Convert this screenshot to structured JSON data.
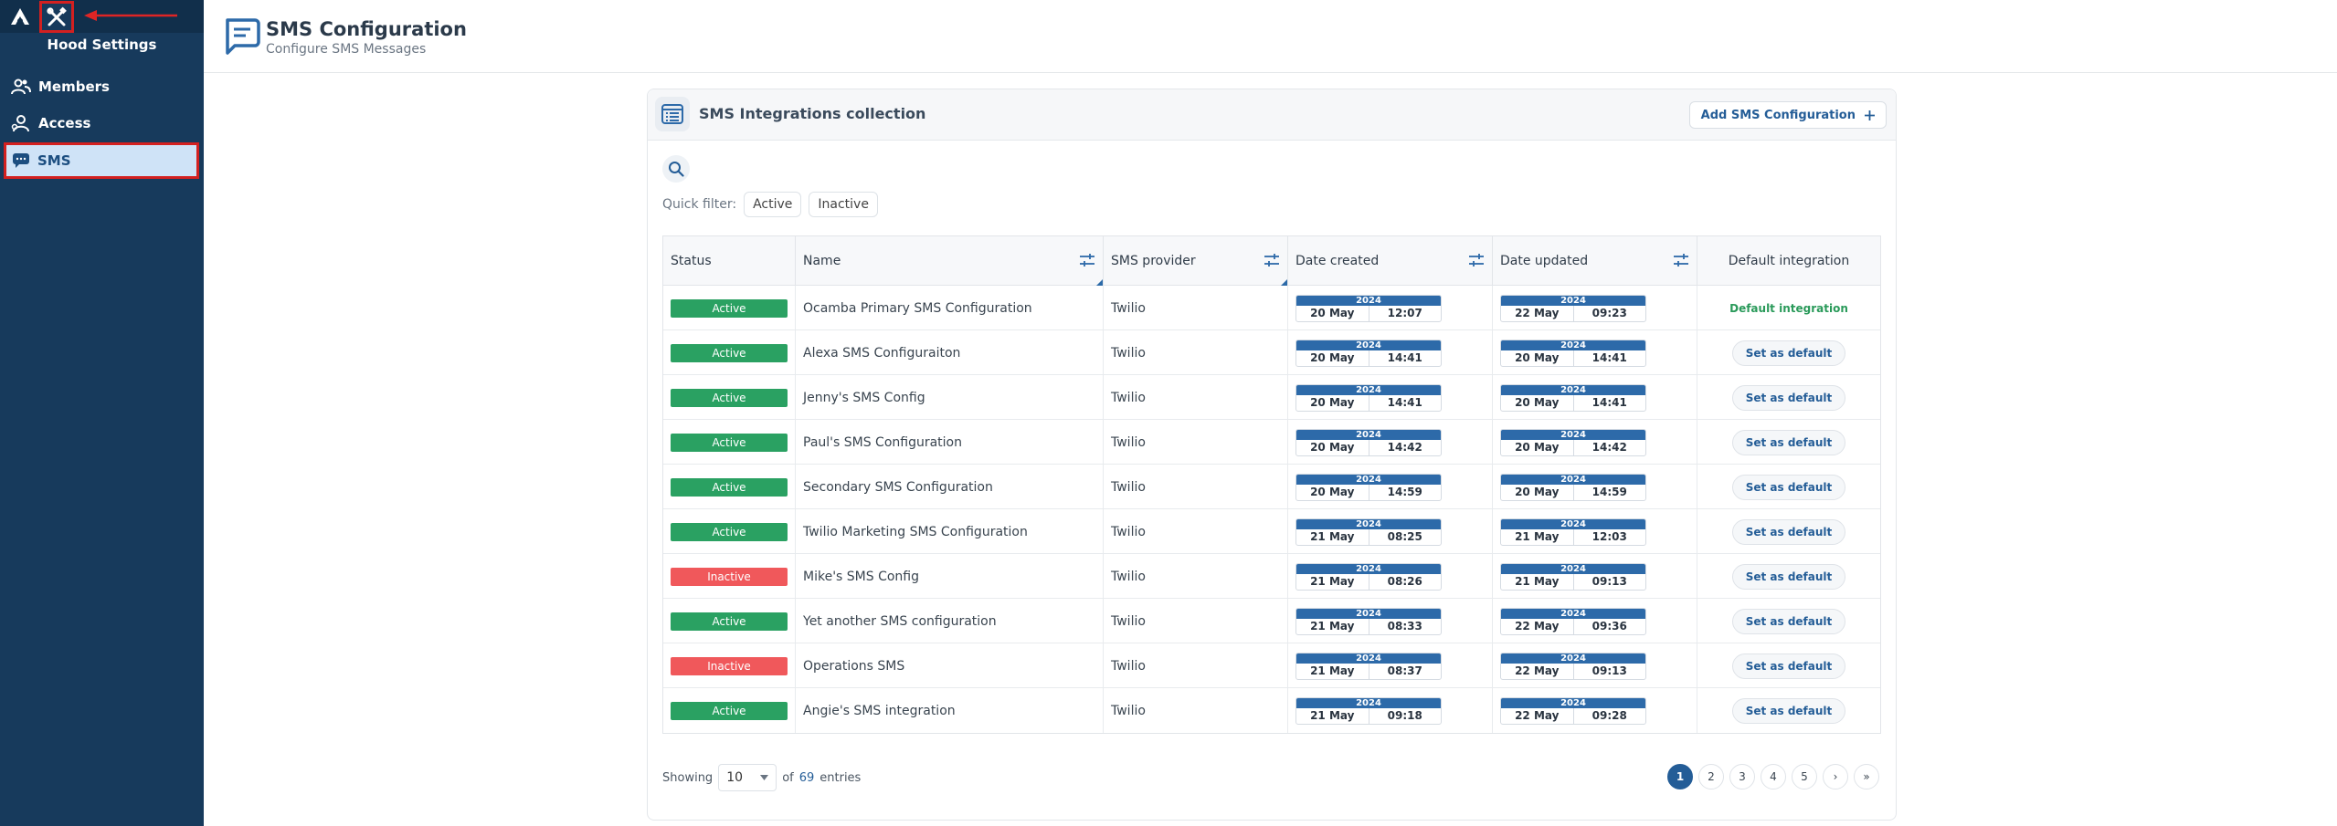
{
  "sidebar": {
    "title": "Hood Settings",
    "items": [
      {
        "label": "Members",
        "icon": "members-icon"
      },
      {
        "label": "Access",
        "icon": "access-icon"
      },
      {
        "label": "SMS",
        "icon": "sms-icon",
        "active": true
      }
    ]
  },
  "header": {
    "title": "SMS Configuration",
    "subtitle": "Configure SMS Messages"
  },
  "panel": {
    "title": "SMS Integrations collection",
    "add_button": "Add SMS Configuration",
    "quick_filter_label": "Quick filter:",
    "quick_filters": [
      "Active",
      "Inactive"
    ]
  },
  "table": {
    "columns": [
      "Status",
      "Name",
      "SMS provider",
      "Date created",
      "Date updated",
      "Default integration"
    ],
    "rows": [
      {
        "status": "Active",
        "name": "Ocamba Primary SMS Configuration",
        "provider": "Twilio",
        "created": {
          "year": "2024",
          "day": "20 May",
          "time": "12:07"
        },
        "updated": {
          "year": "2024",
          "day": "22 May",
          "time": "09:23"
        },
        "default": "Default integration"
      },
      {
        "status": "Active",
        "name": "Alexa SMS Configuraiton",
        "provider": "Twilio",
        "created": {
          "year": "2024",
          "day": "20 May",
          "time": "14:41"
        },
        "updated": {
          "year": "2024",
          "day": "20 May",
          "time": "14:41"
        },
        "default": "Set as default"
      },
      {
        "status": "Active",
        "name": "Jenny's SMS Config",
        "provider": "Twilio",
        "created": {
          "year": "2024",
          "day": "20 May",
          "time": "14:41"
        },
        "updated": {
          "year": "2024",
          "day": "20 May",
          "time": "14:41"
        },
        "default": "Set as default"
      },
      {
        "status": "Active",
        "name": "Paul's SMS Configuration",
        "provider": "Twilio",
        "created": {
          "year": "2024",
          "day": "20 May",
          "time": "14:42"
        },
        "updated": {
          "year": "2024",
          "day": "20 May",
          "time": "14:42"
        },
        "default": "Set as default"
      },
      {
        "status": "Active",
        "name": "Secondary SMS Configuration",
        "provider": "Twilio",
        "created": {
          "year": "2024",
          "day": "20 May",
          "time": "14:59"
        },
        "updated": {
          "year": "2024",
          "day": "20 May",
          "time": "14:59"
        },
        "default": "Set as default"
      },
      {
        "status": "Active",
        "name": "Twilio Marketing SMS Configuration",
        "provider": "Twilio",
        "created": {
          "year": "2024",
          "day": "21 May",
          "time": "08:25"
        },
        "updated": {
          "year": "2024",
          "day": "21 May",
          "time": "12:03"
        },
        "default": "Set as default"
      },
      {
        "status": "Inactive",
        "name": "Mike's SMS Config",
        "provider": "Twilio",
        "created": {
          "year": "2024",
          "day": "21 May",
          "time": "08:26"
        },
        "updated": {
          "year": "2024",
          "day": "21 May",
          "time": "09:13"
        },
        "default": "Set as default"
      },
      {
        "status": "Active",
        "name": "Yet another SMS configuration",
        "provider": "Twilio",
        "created": {
          "year": "2024",
          "day": "21 May",
          "time": "08:33"
        },
        "updated": {
          "year": "2024",
          "day": "22 May",
          "time": "09:36"
        },
        "default": "Set as default"
      },
      {
        "status": "Inactive",
        "name": "Operations SMS",
        "provider": "Twilio",
        "created": {
          "year": "2024",
          "day": "21 May",
          "time": "08:37"
        },
        "updated": {
          "year": "2024",
          "day": "22 May",
          "time": "09:13"
        },
        "default": "Set as default"
      },
      {
        "status": "Active",
        "name": "Angie's SMS integration",
        "provider": "Twilio",
        "created": {
          "year": "2024",
          "day": "21 May",
          "time": "09:18"
        },
        "updated": {
          "year": "2024",
          "day": "22 May",
          "time": "09:28"
        },
        "default": "Set as default"
      }
    ]
  },
  "footer": {
    "showing_label": "Showing",
    "page_size": "10",
    "of_label": "of",
    "total": "69",
    "entries_label": "entries",
    "pages": [
      "1",
      "2",
      "3",
      "4",
      "5"
    ],
    "next": "›",
    "last": "»"
  },
  "colors": {
    "sidebar": "#173a5c",
    "accent": "#245d97",
    "active_badge": "#2aa162",
    "inactive_badge": "#f0585b",
    "highlight": "#d32020"
  }
}
